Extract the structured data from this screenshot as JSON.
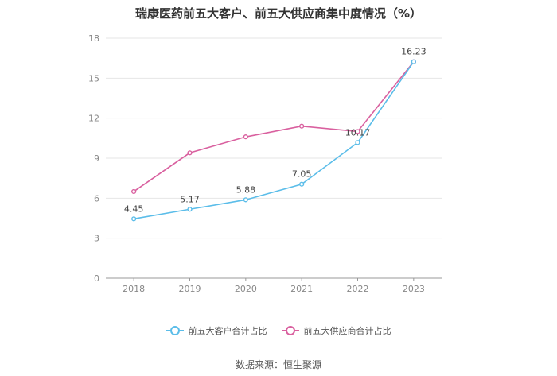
{
  "title": "瑞康医药前五大客户、前五大供应商集中度情况（%）",
  "source": "数据来源：恒生聚源",
  "chart_data": {
    "type": "line",
    "categories": [
      "2018",
      "2019",
      "2020",
      "2021",
      "2022",
      "2023"
    ],
    "ylim": [
      0,
      18
    ],
    "yticks": [
      0,
      3,
      6,
      9,
      12,
      15,
      18
    ],
    "grid": true,
    "legend_position": "bottom",
    "series": [
      {
        "name": "前五大客户合计占比",
        "color": "#5bbde9",
        "values": [
          4.45,
          5.17,
          5.88,
          7.05,
          10.17,
          16.23
        ],
        "labels": [
          "4.45",
          "5.17",
          "5.88",
          "7.05",
          "10.17",
          "16.23"
        ]
      },
      {
        "name": "前五大供应商合计占比",
        "color": "#d9609f",
        "values": [
          6.5,
          9.4,
          10.6,
          11.4,
          11.0,
          16.23
        ],
        "labels": []
      }
    ]
  }
}
